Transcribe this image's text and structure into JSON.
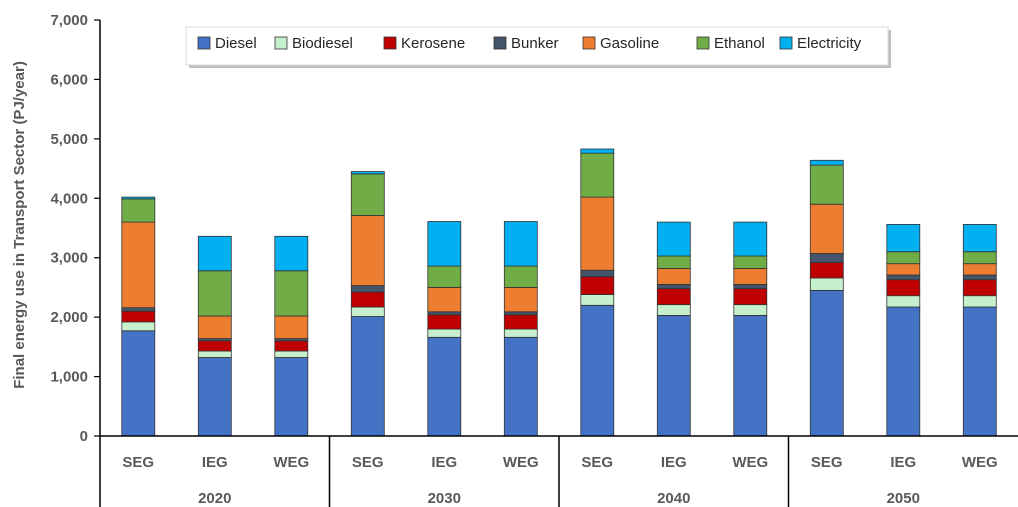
{
  "chart_data": {
    "type": "bar",
    "stacked": true,
    "ylabel": "Final energy use in Transport Sector (PJ/year)",
    "xlabel": "",
    "ylim": [
      0,
      7000
    ],
    "yticks": [
      0,
      1000,
      2000,
      3000,
      4000,
      5000,
      6000,
      7000
    ],
    "ytick_labels": [
      "0",
      "1,000",
      "2,000",
      "3,000",
      "4,000",
      "5,000",
      "6,000",
      "7,000"
    ],
    "grid": false,
    "legend_position": "top",
    "groups": [
      "2020",
      "2030",
      "2040",
      "2050"
    ],
    "categories": [
      "SEG",
      "IEG",
      "WEG",
      "SEG",
      "IEG",
      "WEG",
      "SEG",
      "IEG",
      "WEG",
      "SEG",
      "IEG",
      "WEG"
    ],
    "series": [
      {
        "name": "Diesel",
        "color": "#4472C4",
        "values": [
          1770,
          1320,
          1320,
          2010,
          1660,
          1660,
          2200,
          2030,
          2030,
          2450,
          2170,
          2170
        ]
      },
      {
        "name": "Biodiesel",
        "color": "#C6EFCE",
        "values": [
          150,
          110,
          110,
          160,
          140,
          140,
          180,
          180,
          180,
          210,
          190,
          190
        ]
      },
      {
        "name": "Kerosene",
        "color": "#C00000",
        "values": [
          180,
          170,
          170,
          250,
          240,
          240,
          300,
          270,
          270,
          260,
          270,
          270
        ]
      },
      {
        "name": "Bunker",
        "color": "#44546A",
        "values": [
          60,
          40,
          40,
          110,
          50,
          50,
          110,
          70,
          70,
          150,
          80,
          80
        ]
      },
      {
        "name": "Gasoline",
        "color": "#ED7D31",
        "values": [
          1440,
          380,
          380,
          1180,
          410,
          410,
          1230,
          270,
          270,
          830,
          190,
          190
        ]
      },
      {
        "name": "Ethanol",
        "color": "#70AD47",
        "values": [
          390,
          760,
          760,
          700,
          360,
          360,
          740,
          210,
          210,
          660,
          200,
          200
        ]
      },
      {
        "name": "Electricity",
        "color": "#00B0F0",
        "values": [
          30,
          580,
          580,
          40,
          750,
          750,
          70,
          570,
          570,
          80,
          460,
          460
        ]
      }
    ]
  }
}
